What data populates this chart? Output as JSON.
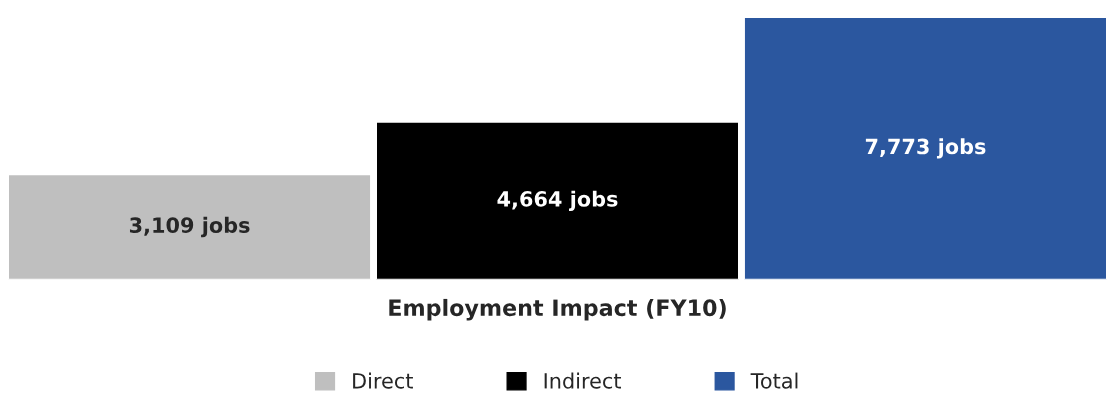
{
  "chart_data": {
    "type": "bar",
    "xlabel": "Employment Impact (FY10)",
    "categories": [
      null,
      null,
      null
    ],
    "series": [
      {
        "name": "Direct",
        "color": "#bfbfbf",
        "values": [
          3109,
          null,
          null
        ],
        "value_labels": [
          "3,109 jobs",
          null,
          null
        ]
      },
      {
        "name": "Indirect",
        "color": "#000000",
        "values": [
          null,
          4664,
          null
        ],
        "value_labels": [
          null,
          "4,664 jobs",
          null
        ]
      },
      {
        "name": "Total",
        "color": "#2b579f",
        "values": [
          null,
          null,
          7773
        ],
        "value_labels": [
          null,
          null,
          "7,773 jobs"
        ]
      }
    ],
    "stacked": true,
    "tick_labels": false,
    "legend": "bottom",
    "grid": false
  }
}
